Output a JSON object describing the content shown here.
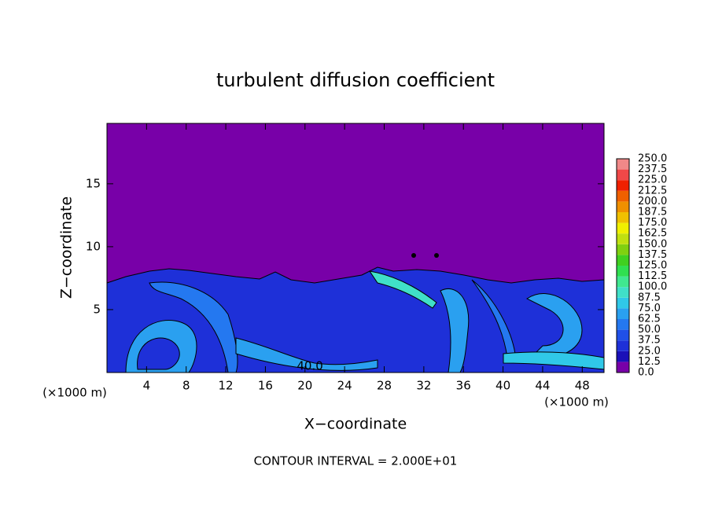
{
  "chart_data": {
    "type": "contour",
    "title": "turbulent diffusion coefficient",
    "x_label": "X−coordinate",
    "y_label": "Z−coordinate",
    "x_unit": "(×1000 m)",
    "annotation": "CONTOUR INTERVAL = 2.000E+01",
    "contour_label": {
      "text": "40.0",
      "x": 20.5,
      "y": 0.3
    },
    "xlim": [
      0,
      50.2
    ],
    "ylim": [
      0,
      19.8
    ],
    "xticks": [
      4,
      8,
      12,
      16,
      20,
      24,
      28,
      32,
      36,
      40,
      44,
      48
    ],
    "yticks": [
      5,
      10,
      15
    ],
    "colorbar": {
      "levels": [
        {
          "value": 0,
          "label": "0.0"
        },
        {
          "value": 12.5,
          "label": "12.5"
        },
        {
          "value": 25,
          "label": "25.0"
        },
        {
          "value": 37.5,
          "label": "37.5"
        },
        {
          "value": 50,
          "label": "50.0"
        },
        {
          "value": 62.5,
          "label": "62.5"
        },
        {
          "value": 75,
          "label": "75.0"
        },
        {
          "value": 87.5,
          "label": "87.5"
        },
        {
          "value": 100,
          "label": "100.0"
        },
        {
          "value": 112.5,
          "label": "112.5"
        },
        {
          "value": 125,
          "label": "125.0"
        },
        {
          "value": 137.5,
          "label": "137.5"
        },
        {
          "value": 150,
          "label": "150.0"
        },
        {
          "value": 162.5,
          "label": "162.5"
        },
        {
          "value": 175,
          "label": "175.0"
        },
        {
          "value": 187.5,
          "label": "187.5"
        },
        {
          "value": 200,
          "label": "200.0"
        },
        {
          "value": 212.5,
          "label": "212.5"
        },
        {
          "value": 225,
          "label": "225.0"
        },
        {
          "value": 237.5,
          "label": "237.5"
        },
        {
          "value": 250,
          "label": "250.0"
        }
      ],
      "colors": [
        "#7800a8",
        "#1a10b8",
        "#1e30d8",
        "#2050e8",
        "#2478f0",
        "#2aa0f0",
        "#30c8e8",
        "#40e0c8",
        "#40e890",
        "#30e050",
        "#40d020",
        "#80d010",
        "#c0e010",
        "#f0f000",
        "#f0c000",
        "#f09000",
        "#f06000",
        "#f02000",
        "#f04848",
        "#f08888"
      ]
    }
  }
}
